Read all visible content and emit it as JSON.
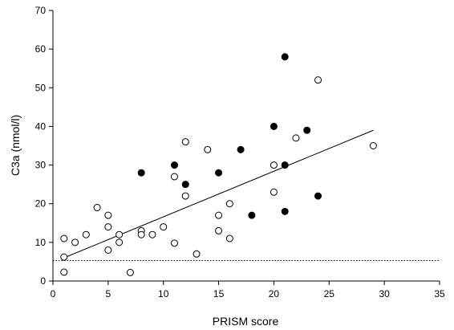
{
  "chart_data": {
    "type": "scatter",
    "title": "",
    "xlabel": "PRISM score",
    "ylabel": "C3a (nmol/l)",
    "xlim": [
      0,
      35
    ],
    "ylim": [
      0,
      70
    ],
    "xticks": [
      0,
      5,
      10,
      15,
      20,
      25,
      30,
      35
    ],
    "yticks": [
      0,
      10,
      20,
      30,
      40,
      50,
      60,
      70
    ],
    "grid": false,
    "series": [
      {
        "marker": "open-circle",
        "color": "#000000",
        "points": [
          [
            1,
            11
          ],
          [
            1,
            6.2
          ],
          [
            1,
            2.3
          ],
          [
            2,
            10
          ],
          [
            3,
            12
          ],
          [
            4,
            19
          ],
          [
            5,
            17
          ],
          [
            5,
            14
          ],
          [
            5,
            8
          ],
          [
            6,
            12
          ],
          [
            6,
            10
          ],
          [
            7,
            2.2
          ],
          [
            8,
            13
          ],
          [
            8,
            12
          ],
          [
            9,
            12
          ],
          [
            10,
            14
          ],
          [
            11,
            27
          ],
          [
            11,
            9.8
          ],
          [
            12,
            36
          ],
          [
            12,
            22
          ],
          [
            13,
            7
          ],
          [
            14,
            34
          ],
          [
            15,
            17
          ],
          [
            15,
            13
          ],
          [
            16,
            20
          ],
          [
            16,
            11
          ],
          [
            20,
            30
          ],
          [
            20,
            23
          ],
          [
            22,
            37
          ],
          [
            24,
            52
          ],
          [
            29,
            35
          ]
        ]
      },
      {
        "marker": "filled-circle",
        "color": "#000000",
        "points": [
          [
            8,
            28
          ],
          [
            11,
            30
          ],
          [
            12,
            25
          ],
          [
            15,
            28
          ],
          [
            17,
            34
          ],
          [
            18,
            17
          ],
          [
            20,
            40
          ],
          [
            21,
            58
          ],
          [
            21,
            30
          ],
          [
            21,
            18
          ],
          [
            23,
            39
          ],
          [
            24,
            22
          ]
        ]
      }
    ],
    "regression_line": {
      "x": [
        1,
        29
      ],
      "y": [
        6,
        39
      ]
    },
    "reference_line": {
      "y": 5.3,
      "style": "dotted"
    }
  }
}
